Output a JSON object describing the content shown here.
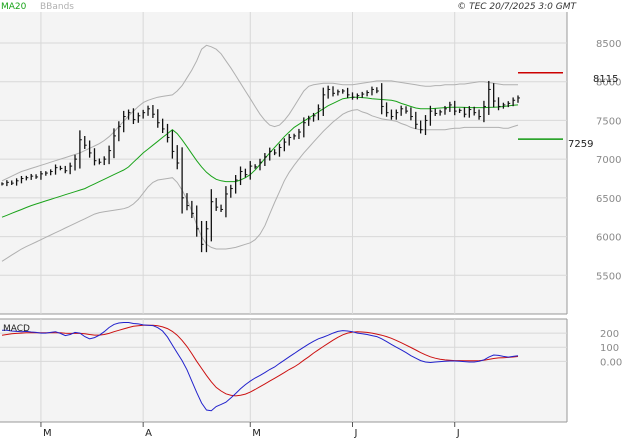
{
  "header": {
    "legend_ma": "MA20",
    "legend_bb": "BBands",
    "timestamp": "© TEC 20/7/2025 3:0 GMT"
  },
  "colors": {
    "ma": "#1aa31a",
    "bands": "#b0b0b0",
    "price": "#111111",
    "resistance": "#cc0000",
    "support": "#119911",
    "macd": "#2222cc",
    "signal": "#cc1111",
    "panel_bg": "#f4f4f4",
    "grid": "#d8d8d8"
  },
  "chart_data": [
    {
      "type": "ohlc",
      "title": "",
      "overlays": [
        "MA20",
        "BBands"
      ],
      "ylim": [
        5000,
        8900
      ],
      "y_ticks": [
        5500,
        6000,
        6500,
        7000,
        7500,
        8000,
        8500
      ],
      "y_tick_labels": [
        "5500",
        "6000",
        "6500",
        "7000",
        "7500",
        "8000",
        "8500"
      ],
      "x_ticks": [
        "M",
        "A",
        "M",
        "J",
        "J"
      ],
      "x_tick_positions": [
        8,
        29,
        51,
        72,
        93
      ],
      "n_bars": 107,
      "grid": true,
      "levels": [
        {
          "name": "resistance",
          "value": 8115,
          "label": "8115"
        },
        {
          "name": "support",
          "value": 7259,
          "label": "7259"
        }
      ],
      "close": [
        6680,
        6700,
        6690,
        6720,
        6750,
        6760,
        6780,
        6770,
        6810,
        6820,
        6840,
        6890,
        6880,
        6850,
        6910,
        7000,
        7250,
        7180,
        7080,
        6980,
        6960,
        7000,
        7110,
        7300,
        7420,
        7550,
        7600,
        7510,
        7560,
        7600,
        7650,
        7580,
        7470,
        7390,
        7280,
        7100,
        6950,
        6500,
        6400,
        6300,
        6100,
        5900,
        6100,
        6450,
        6380,
        6350,
        6550,
        6620,
        6730,
        6840,
        6800,
        6910,
        6900,
        6960,
        7030,
        7100,
        7080,
        7150,
        7220,
        7280,
        7300,
        7350,
        7470,
        7520,
        7560,
        7650,
        7830,
        7900,
        7850,
        7870,
        7880,
        7830,
        7800,
        7820,
        7840,
        7860,
        7900,
        7880,
        7680,
        7600,
        7550,
        7600,
        7650,
        7620,
        7550,
        7450,
        7380,
        7500,
        7620,
        7590,
        7610,
        7650,
        7700,
        7620,
        7630,
        7580,
        7640,
        7600,
        7550,
        7680,
        7900,
        7750,
        7680,
        7700,
        7720,
        7760,
        7790
      ],
      "ma20": [
        6250,
        6275,
        6300,
        6325,
        6350,
        6375,
        6400,
        6420,
        6440,
        6460,
        6480,
        6500,
        6520,
        6540,
        6560,
        6580,
        6600,
        6620,
        6650,
        6680,
        6710,
        6740,
        6770,
        6800,
        6830,
        6860,
        6900,
        6960,
        7020,
        7080,
        7130,
        7180,
        7230,
        7280,
        7330,
        7380,
        7330,
        7250,
        7160,
        7070,
        6980,
        6900,
        6830,
        6780,
        6740,
        6720,
        6710,
        6710,
        6710,
        6730,
        6760,
        6800,
        6860,
        6930,
        7010,
        7080,
        7150,
        7220,
        7290,
        7350,
        7410,
        7450,
        7490,
        7530,
        7570,
        7610,
        7650,
        7690,
        7720,
        7750,
        7780,
        7790,
        7800,
        7800,
        7795,
        7790,
        7780,
        7775,
        7770,
        7765,
        7760,
        7745,
        7720,
        7700,
        7680,
        7660,
        7650,
        7650,
        7650,
        7655,
        7660,
        7665,
        7670,
        7670,
        7670,
        7668,
        7666,
        7665,
        7665,
        7666,
        7668,
        7670,
        7673,
        7680,
        7688,
        7695,
        7700
      ],
      "bb_upper": [
        6720,
        6750,
        6780,
        6810,
        6840,
        6860,
        6880,
        6900,
        6920,
        6940,
        6960,
        6980,
        7000,
        7020,
        7040,
        7060,
        7080,
        7110,
        7140,
        7170,
        7200,
        7240,
        7290,
        7350,
        7420,
        7490,
        7560,
        7620,
        7680,
        7730,
        7760,
        7780,
        7800,
        7810,
        7820,
        7830,
        7880,
        7950,
        8050,
        8150,
        8270,
        8420,
        8470,
        8450,
        8420,
        8360,
        8270,
        8180,
        8080,
        7980,
        7880,
        7780,
        7680,
        7580,
        7500,
        7440,
        7420,
        7440,
        7500,
        7580,
        7680,
        7780,
        7880,
        7940,
        7960,
        7970,
        7980,
        7980,
        7980,
        7970,
        7960,
        7960,
        7960,
        7970,
        7980,
        7990,
        8000,
        8010,
        8010,
        8010,
        8010,
        8000,
        7990,
        7980,
        7970,
        7960,
        7950,
        7940,
        7940,
        7950,
        7950,
        7960,
        7960,
        7960,
        7970,
        7970,
        7980,
        7990,
        8000,
        8000,
        7990,
        7980,
        7970,
        7960,
        7960,
        7960,
        7960
      ],
      "bb_lower": [
        5680,
        5720,
        5760,
        5800,
        5840,
        5870,
        5900,
        5930,
        5960,
        5990,
        6020,
        6050,
        6080,
        6110,
        6140,
        6170,
        6200,
        6230,
        6260,
        6290,
        6310,
        6320,
        6330,
        6340,
        6350,
        6360,
        6380,
        6420,
        6480,
        6560,
        6640,
        6700,
        6730,
        6740,
        6750,
        6760,
        6700,
        6600,
        6480,
        6330,
        6150,
        6000,
        5900,
        5860,
        5840,
        5840,
        5840,
        5850,
        5860,
        5880,
        5900,
        5920,
        5960,
        6030,
        6140,
        6290,
        6440,
        6580,
        6720,
        6830,
        6920,
        7000,
        7080,
        7150,
        7220,
        7290,
        7360,
        7420,
        7480,
        7530,
        7580,
        7610,
        7630,
        7640,
        7610,
        7590,
        7560,
        7540,
        7520,
        7510,
        7500,
        7490,
        7460,
        7440,
        7410,
        7390,
        7380,
        7380,
        7380,
        7380,
        7380,
        7380,
        7390,
        7400,
        7400,
        7410,
        7410,
        7410,
        7410,
        7410,
        7410,
        7410,
        7410,
        7400,
        7400,
        7420,
        7440
      ]
    },
    {
      "type": "line",
      "title": "MACD",
      "ylim": [
        -430,
        300
      ],
      "y_ticks": [
        200,
        100,
        0
      ],
      "y_tick_labels": [
        "200",
        "100",
        "0.00"
      ],
      "series": [
        {
          "name": "MACD",
          "values": [
            220,
            220,
            215,
            212,
            210,
            212,
            208,
            205,
            200,
            200,
            205,
            210,
            198,
            182,
            190,
            205,
            200,
            175,
            160,
            168,
            185,
            210,
            240,
            262,
            272,
            275,
            275,
            268,
            265,
            258,
            255,
            253,
            238,
            215,
            172,
            115,
            60,
            5,
            -60,
            -140,
            -220,
            -295,
            -345,
            -350,
            -320,
            -305,
            -290,
            -260,
            -228,
            -195,
            -165,
            -140,
            -118,
            -100,
            -80,
            -58,
            -40,
            -15,
            8,
            32,
            55,
            78,
            100,
            122,
            142,
            160,
            172,
            185,
            200,
            212,
            218,
            215,
            210,
            200,
            195,
            190,
            182,
            175,
            160,
            140,
            120,
            100,
            82,
            62,
            40,
            22,
            5,
            -5,
            -8,
            -5,
            -2,
            0,
            2,
            2,
            0,
            -2,
            -5,
            -5,
            0,
            10,
            30,
            45,
            42,
            35,
            30,
            35,
            40
          ]
        },
        {
          "name": "Signal",
          "values": [
            185,
            190,
            195,
            198,
            200,
            202,
            203,
            203,
            203,
            202,
            202,
            203,
            202,
            199,
            198,
            198,
            198,
            195,
            190,
            186,
            186,
            190,
            198,
            210,
            220,
            230,
            240,
            248,
            252,
            255,
            256,
            256,
            252,
            244,
            232,
            212,
            185,
            148,
            105,
            55,
            0,
            -50,
            -100,
            -145,
            -185,
            -210,
            -230,
            -240,
            -245,
            -240,
            -232,
            -218,
            -200,
            -180,
            -160,
            -140,
            -120,
            -100,
            -80,
            -58,
            -40,
            -18,
            8,
            32,
            58,
            82,
            105,
            128,
            150,
            170,
            188,
            200,
            207,
            210,
            208,
            205,
            200,
            193,
            185,
            175,
            163,
            148,
            132,
            115,
            98,
            80,
            62,
            46,
            32,
            22,
            15,
            10,
            7,
            5,
            5,
            4,
            4,
            4,
            5,
            8,
            14,
            20,
            24,
            26,
            28,
            31,
            34
          ]
        }
      ],
      "x_ticks": [
        "M",
        "A",
        "M",
        "J",
        "J"
      ]
    }
  ]
}
